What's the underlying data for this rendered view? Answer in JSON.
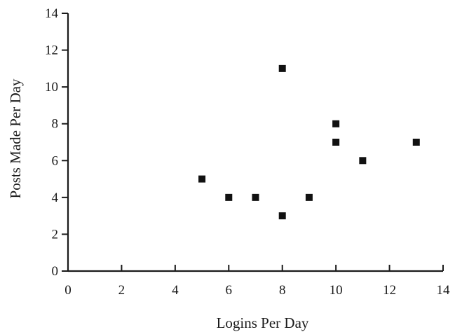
{
  "chart_data": {
    "type": "scatter",
    "title": "",
    "xlabel": "Logins Per Day",
    "ylabel": "Posts Made Per Day",
    "xlim": [
      0,
      14
    ],
    "ylim": [
      0,
      14
    ],
    "xticks": [
      0,
      2,
      4,
      6,
      8,
      10,
      12,
      14
    ],
    "yticks": [
      0,
      2,
      4,
      6,
      8,
      10,
      12,
      14
    ],
    "grid": false,
    "marker": "square",
    "marker_color": "#111111",
    "points": [
      {
        "x": 5,
        "y": 5
      },
      {
        "x": 6,
        "y": 4
      },
      {
        "x": 7,
        "y": 4
      },
      {
        "x": 8,
        "y": 11
      },
      {
        "x": 8,
        "y": 3
      },
      {
        "x": 9,
        "y": 4
      },
      {
        "x": 10,
        "y": 8
      },
      {
        "x": 10,
        "y": 7
      },
      {
        "x": 11,
        "y": 6
      },
      {
        "x": 13,
        "y": 7
      }
    ]
  }
}
